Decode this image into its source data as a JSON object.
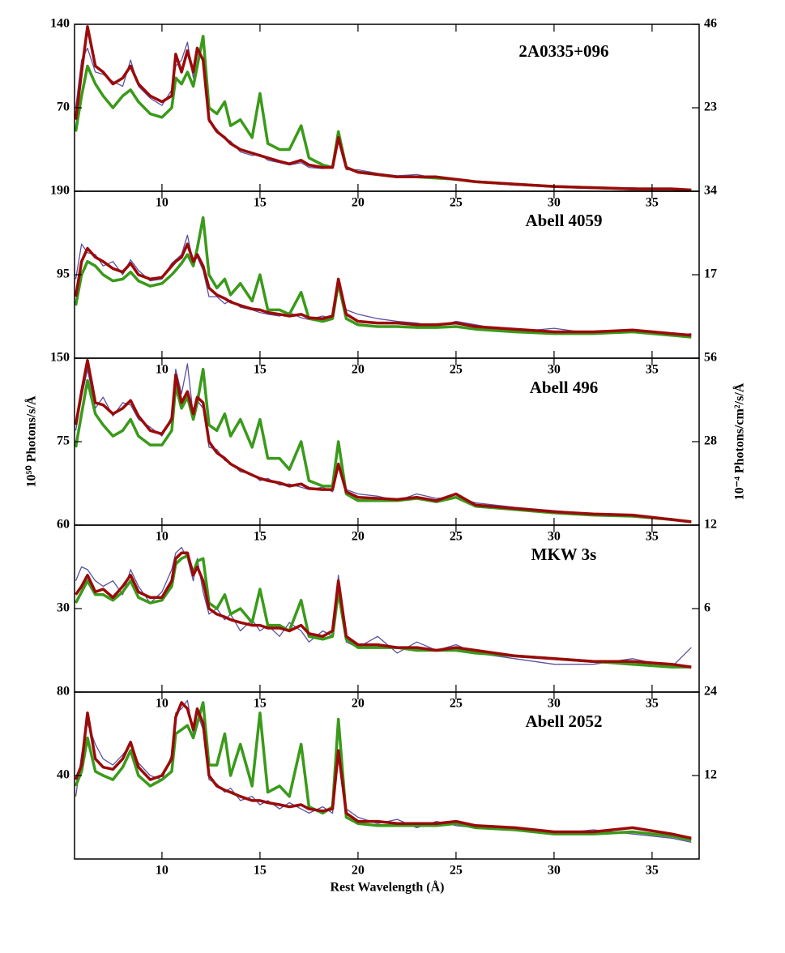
{
  "xlabel": "Rest Wavelength (Å)",
  "ylabel": "10⁵⁰ Photons/s/Å",
  "y2label": "10⁻⁴ Photons/cm²/s/Å",
  "chart_data": [
    {
      "type": "line",
      "title": "2A0335+096",
      "xlim": [
        5.54,
        37.4
      ],
      "xticks": [
        10,
        15,
        20,
        25,
        30,
        35
      ],
      "ylim": [
        0,
        140
      ],
      "yticks": [
        70,
        140
      ],
      "y2lim": [
        0,
        46
      ],
      "y2ticks": [
        23,
        46
      ],
      "x": [
        5.6,
        5.9,
        6.2,
        6.6,
        7.0,
        7.5,
        8.0,
        8.4,
        8.8,
        9.4,
        10.0,
        10.5,
        10.7,
        11.0,
        11.3,
        11.6,
        11.8,
        12.1,
        12.4,
        12.8,
        13.2,
        13.5,
        14.0,
        14.6,
        15.0,
        15.4,
        16.0,
        16.5,
        17.1,
        17.5,
        18.2,
        18.7,
        19.0,
        19.4,
        20.0,
        21,
        22,
        23,
        24,
        25,
        26,
        28,
        30,
        32,
        34,
        36,
        37.0
      ],
      "series": [
        {
          "color": "#5a52a0",
          "values": [
            70,
            110,
            120,
            100,
            98,
            92,
            88,
            110,
            88,
            78,
            72,
            85,
            105,
            110,
            125,
            95,
            115,
            112,
            58,
            52,
            44,
            42,
            33,
            30,
            31,
            26,
            24,
            22,
            24,
            20,
            19,
            21,
            42,
            18,
            18,
            15,
            13,
            14,
            11,
            10,
            8,
            5,
            4,
            3,
            3,
            1,
            1
          ]
        },
        {
          "color": "#3a9a1a",
          "values": [
            50,
            80,
            105,
            90,
            80,
            70,
            80,
            85,
            75,
            65,
            62,
            70,
            95,
            90,
            100,
            88,
            105,
            130,
            70,
            65,
            75,
            55,
            60,
            45,
            82,
            40,
            35,
            35,
            55,
            28,
            22,
            20,
            50,
            20,
            16,
            14,
            12,
            12,
            11,
            10,
            8,
            6,
            4,
            3,
            2,
            2,
            1
          ]
        },
        {
          "color": "#9b0a0a",
          "values": [
            60,
            100,
            138,
            105,
            100,
            90,
            95,
            105,
            90,
            80,
            75,
            80,
            115,
            100,
            118,
            100,
            120,
            110,
            60,
            50,
            45,
            40,
            35,
            32,
            30,
            28,
            25,
            23,
            26,
            22,
            20,
            20,
            45,
            20,
            16,
            14,
            12,
            12,
            12,
            10,
            8,
            6,
            4,
            3,
            2,
            2,
            1
          ]
        }
      ]
    },
    {
      "type": "line",
      "title": "Abell 4059",
      "xlim": [
        5.54,
        37.4
      ],
      "xticks": [
        10,
        15,
        20,
        25,
        30,
        35
      ],
      "ylim": [
        0,
        190
      ],
      "yticks": [
        95,
        190
      ],
      "y2lim": [
        0,
        34
      ],
      "y2ticks": [
        17,
        34
      ],
      "x": [
        5.6,
        5.9,
        6.2,
        6.6,
        7.0,
        7.5,
        8.0,
        8.4,
        8.8,
        9.4,
        10.0,
        10.5,
        10.7,
        11.0,
        11.3,
        11.6,
        11.8,
        12.1,
        12.4,
        12.8,
        13.2,
        13.5,
        14.0,
        14.6,
        15.0,
        15.4,
        16.0,
        16.5,
        17.1,
        17.5,
        18.2,
        18.7,
        19.0,
        19.4,
        20.0,
        21,
        22,
        23,
        24,
        25,
        26,
        28,
        30,
        32,
        34,
        36,
        37.0
      ],
      "series": [
        {
          "color": "#5a52a0",
          "values": [
            90,
            130,
            120,
            118,
            105,
            110,
            95,
            112,
            100,
            88,
            90,
            108,
            112,
            118,
            140,
            108,
            115,
            100,
            70,
            70,
            62,
            66,
            58,
            55,
            52,
            50,
            48,
            52,
            46,
            44,
            48,
            45,
            85,
            55,
            50,
            45,
            42,
            40,
            36,
            42,
            38,
            30,
            34,
            28,
            30,
            25,
            28
          ]
        },
        {
          "color": "#3a9a1a",
          "values": [
            60,
            95,
            110,
            105,
            95,
            88,
            90,
            98,
            88,
            82,
            85,
            95,
            100,
            108,
            118,
            105,
            125,
            160,
            95,
            80,
            90,
            72,
            85,
            65,
            95,
            55,
            55,
            50,
            75,
            45,
            42,
            45,
            85,
            45,
            38,
            36,
            36,
            35,
            35,
            36,
            33,
            30,
            28,
            28,
            30,
            26,
            24
          ]
        },
        {
          "color": "#9b0a0a",
          "values": [
            70,
            110,
            125,
            115,
            110,
            102,
            98,
            108,
            95,
            90,
            92,
            105,
            110,
            115,
            130,
            110,
            118,
            105,
            80,
            72,
            68,
            64,
            60,
            56,
            55,
            52,
            50,
            48,
            50,
            46,
            45,
            48,
            90,
            50,
            42,
            40,
            40,
            38,
            38,
            40,
            36,
            33,
            30,
            30,
            32,
            28,
            26
          ]
        }
      ]
    },
    {
      "type": "line",
      "title": "Abell 496",
      "xlim": [
        5.54,
        37.4
      ],
      "xticks": [
        10,
        15,
        20,
        25,
        30,
        35
      ],
      "ylim": [
        0,
        150
      ],
      "yticks": [
        75,
        150
      ],
      "y2lim": [
        0,
        56
      ],
      "y2ticks": [
        28,
        56
      ],
      "x": [
        5.6,
        5.9,
        6.2,
        6.6,
        7.0,
        7.5,
        8.0,
        8.4,
        8.8,
        9.4,
        10.0,
        10.5,
        10.7,
        11.0,
        11.3,
        11.6,
        11.8,
        12.1,
        12.4,
        12.8,
        13.2,
        13.5,
        14.0,
        14.6,
        15.0,
        15.4,
        16.0,
        16.5,
        17.1,
        17.5,
        18.2,
        18.7,
        19.0,
        19.4,
        20.0,
        21,
        22,
        23,
        24,
        25,
        26,
        28,
        30,
        32,
        34,
        36,
        37.0
      ],
      "series": [
        {
          "color": "#5a52a0",
          "values": [
            85,
            115,
            140,
            105,
            115,
            98,
            110,
            108,
            95,
            88,
            80,
            98,
            140,
            118,
            145,
            98,
            112,
            105,
            70,
            68,
            58,
            56,
            48,
            46,
            40,
            42,
            36,
            37,
            34,
            32,
            34,
            30,
            52,
            32,
            28,
            26,
            22,
            28,
            24,
            25,
            20,
            16,
            13,
            10,
            8,
            6,
            2
          ]
        },
        {
          "color": "#3a9a1a",
          "values": [
            70,
            100,
            130,
            100,
            90,
            80,
            85,
            95,
            80,
            72,
            72,
            85,
            125,
            105,
            115,
            95,
            110,
            140,
            90,
            85,
            100,
            80,
            95,
            70,
            95,
            60,
            60,
            50,
            75,
            40,
            35,
            35,
            75,
            28,
            22,
            22,
            22,
            24,
            21,
            25,
            17,
            14,
            11,
            9,
            8,
            5,
            3
          ]
        },
        {
          "color": "#9b0a0a",
          "values": [
            90,
            120,
            148,
            110,
            108,
            100,
            105,
            112,
            98,
            85,
            82,
            95,
            135,
            110,
            120,
            100,
            115,
            110,
            75,
            65,
            60,
            55,
            50,
            45,
            42,
            40,
            38,
            35,
            37,
            33,
            32,
            32,
            55,
            30,
            25,
            24,
            23,
            25,
            22,
            28,
            18,
            15,
            12,
            10,
            9,
            5,
            3
          ]
        }
      ]
    },
    {
      "type": "line",
      "title": "MKW 3s",
      "xlim": [
        5.54,
        37.4
      ],
      "xticks": [
        10,
        15,
        20,
        25,
        30,
        35
      ],
      "ylim": [
        0,
        60
      ],
      "yticks": [
        30,
        60
      ],
      "y2lim": [
        0,
        12
      ],
      "y2ticks": [
        6,
        12
      ],
      "x": [
        5.6,
        5.9,
        6.2,
        6.6,
        7.0,
        7.5,
        8.0,
        8.4,
        8.8,
        9.4,
        10.0,
        10.5,
        10.7,
        11.0,
        11.3,
        11.6,
        11.8,
        12.1,
        12.4,
        12.8,
        13.2,
        13.5,
        14.0,
        14.6,
        15.0,
        15.4,
        16.0,
        16.5,
        17.1,
        17.5,
        18.2,
        18.7,
        19.0,
        19.4,
        20.0,
        21,
        22,
        23,
        24,
        25,
        26,
        28,
        30,
        32,
        34,
        36,
        37.0
      ],
      "series": [
        {
          "color": "#5a52a0",
          "values": [
            40,
            45,
            44,
            40,
            38,
            40,
            35,
            44,
            38,
            32,
            36,
            44,
            50,
            52,
            48,
            40,
            48,
            36,
            28,
            30,
            26,
            28,
            22,
            26,
            22,
            24,
            20,
            25,
            22,
            18,
            22,
            20,
            42,
            18,
            16,
            20,
            14,
            18,
            15,
            17,
            14,
            12,
            10,
            10,
            12,
            9,
            16
          ]
        },
        {
          "color": "#3a9a1a",
          "values": [
            32,
            36,
            40,
            35,
            35,
            33,
            36,
            40,
            34,
            32,
            33,
            38,
            46,
            48,
            49,
            43,
            47,
            48,
            32,
            30,
            35,
            28,
            30,
            25,
            37,
            24,
            24,
            22,
            33,
            20,
            19,
            20,
            36,
            19,
            16,
            16,
            16,
            15,
            15,
            15,
            14,
            13,
            12,
            11,
            10,
            9,
            9
          ]
        },
        {
          "color": "#9b0a0a",
          "values": [
            35,
            38,
            42,
            36,
            37,
            34,
            38,
            42,
            36,
            34,
            34,
            40,
            48,
            50,
            50,
            42,
            45,
            40,
            30,
            28,
            27,
            26,
            25,
            24,
            24,
            23,
            23,
            22,
            24,
            21,
            20,
            22,
            40,
            20,
            17,
            17,
            16,
            16,
            15,
            16,
            15,
            13,
            12,
            11,
            11,
            10,
            9
          ]
        }
      ]
    },
    {
      "type": "line",
      "title": "Abell 2052",
      "xlim": [
        5.54,
        37.4
      ],
      "xticks": [
        10,
        15,
        20,
        25,
        30,
        35
      ],
      "ylim": [
        0,
        80
      ],
      "yticks": [
        40,
        80
      ],
      "y2lim": [
        0,
        24
      ],
      "y2ticks": [
        12,
        24
      ],
      "x": [
        5.6,
        5.9,
        6.2,
        6.6,
        7.0,
        7.5,
        8.0,
        8.4,
        8.8,
        9.4,
        10.0,
        10.5,
        10.7,
        11.0,
        11.3,
        11.6,
        11.8,
        12.1,
        12.4,
        12.8,
        13.2,
        13.5,
        14.0,
        14.6,
        15.0,
        15.4,
        16.0,
        16.5,
        17.1,
        17.5,
        18.2,
        18.7,
        19.0,
        19.4,
        20.0,
        21,
        22,
        23,
        24,
        25,
        26,
        28,
        30,
        32,
        34,
        36,
        37.0
      ],
      "series": [
        {
          "color": "#5a52a0",
          "values": [
            30,
            50,
            65,
            55,
            48,
            45,
            50,
            55,
            46,
            40,
            38,
            50,
            70,
            72,
            76,
            60,
            70,
            62,
            38,
            36,
            32,
            34,
            28,
            30,
            26,
            28,
            24,
            27,
            24,
            22,
            25,
            22,
            50,
            24,
            20,
            17,
            19,
            15,
            18,
            16,
            15,
            14,
            12,
            14,
            12,
            10,
            8
          ]
        },
        {
          "color": "#3a9a1a",
          "values": [
            35,
            42,
            58,
            42,
            40,
            38,
            44,
            52,
            40,
            35,
            38,
            42,
            60,
            62,
            64,
            58,
            65,
            75,
            45,
            45,
            60,
            40,
            55,
            35,
            70,
            32,
            35,
            30,
            55,
            25,
            22,
            25,
            67,
            20,
            17,
            16,
            16,
            16,
            16,
            17,
            15,
            14,
            12,
            12,
            13,
            11,
            9
          ]
        },
        {
          "color": "#9b0a0a",
          "values": [
            38,
            45,
            70,
            48,
            44,
            43,
            48,
            56,
            44,
            38,
            40,
            48,
            68,
            75,
            72,
            62,
            72,
            65,
            40,
            35,
            33,
            32,
            30,
            28,
            28,
            27,
            26,
            25,
            26,
            24,
            23,
            24,
            52,
            22,
            18,
            18,
            17,
            17,
            17,
            18,
            16,
            15,
            13,
            13,
            15,
            12,
            10
          ]
        }
      ]
    }
  ]
}
